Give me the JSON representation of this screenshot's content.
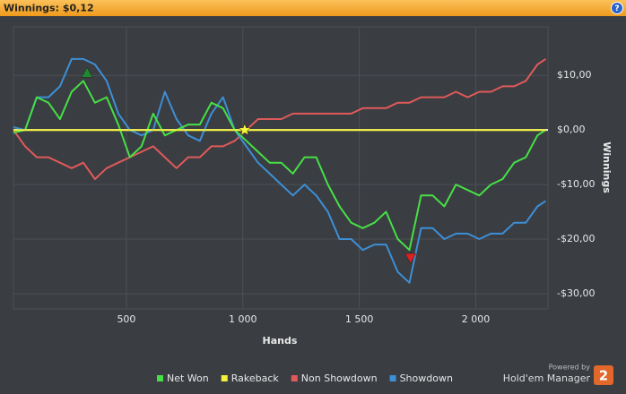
{
  "chart_data": {
    "type": "line",
    "title": "Winnings: $0,12",
    "xlabel": "Hands",
    "ylabel": "Winnings",
    "footer": {
      "powered": "Powered by",
      "brand": "Hold'em Manager",
      "version": "2"
    },
    "x": [
      15,
      65,
      115,
      165,
      215,
      265,
      315,
      365,
      415,
      465,
      515,
      565,
      615,
      665,
      715,
      765,
      815,
      865,
      915,
      965,
      1015,
      1065,
      1115,
      1165,
      1215,
      1265,
      1315,
      1365,
      1415,
      1465,
      1515,
      1565,
      1615,
      1665,
      1715,
      1765,
      1815,
      1865,
      1915,
      1965,
      2015,
      2065,
      2115,
      2165,
      2215,
      2265,
      2300
    ],
    "series": [
      {
        "name": "Net Won",
        "color": "#46e046",
        "values": [
          -0.5,
          0,
          6,
          5,
          2,
          7,
          9,
          5,
          6,
          1,
          -5,
          -3,
          3,
          -1,
          0,
          1,
          1,
          5,
          4,
          0,
          -2,
          -4,
          -6,
          -6,
          -8,
          -5,
          -5,
          -10,
          -14,
          -17,
          -18,
          -17,
          -15,
          -20,
          -22,
          -12,
          -12,
          -14,
          -10,
          -11,
          -12,
          -10,
          -9,
          -6,
          -5,
          -1,
          0
        ]
      },
      {
        "name": "Rakeback",
        "color": "#f2f23a",
        "values": [
          0,
          0,
          0,
          0,
          0,
          0,
          0,
          0,
          0,
          0,
          0,
          0,
          0,
          0,
          0,
          0,
          0,
          0,
          0,
          0,
          0,
          0,
          0,
          0,
          0,
          0,
          0,
          0,
          0,
          0,
          0,
          0,
          0,
          0,
          0,
          0,
          0,
          0,
          0,
          0,
          0,
          0,
          0,
          0,
          0,
          0,
          0
        ]
      },
      {
        "name": "Non Showdown",
        "color": "#e05a5a",
        "values": [
          0,
          -3,
          -5,
          -5,
          -6,
          -7,
          -6,
          -9,
          -7,
          -6,
          -5,
          -4,
          -3,
          -5,
          -7,
          -5,
          -5,
          -3,
          -3,
          -2,
          0,
          2,
          2,
          2,
          3,
          3,
          3,
          3,
          3,
          3,
          4,
          4,
          4,
          5,
          5,
          6,
          6,
          6,
          7,
          6,
          7,
          7,
          8,
          8,
          9,
          12,
          13
        ]
      },
      {
        "name": "Showdown",
        "color": "#3d8fd6",
        "values": [
          0.5,
          0,
          6,
          6,
          8,
          13,
          13,
          12,
          9,
          3,
          0,
          -1,
          0,
          7,
          2,
          -1,
          -2,
          3,
          6,
          0,
          -3,
          -6,
          -8,
          -10,
          -12,
          -10,
          -12,
          -15,
          -20,
          -20,
          -22,
          -21,
          -21,
          -26,
          -28,
          -18,
          -18,
          -20,
          -19,
          -19,
          -20,
          -19,
          -19,
          -17,
          -17,
          -14,
          -13
        ]
      }
    ],
    "markers": [
      {
        "x": 331,
        "value": 10.3,
        "color": "#1e8a2e",
        "shape": "triangle-up"
      },
      {
        "x": 1008,
        "value": 0,
        "color": "#f5f53a",
        "shape": "star"
      },
      {
        "x": 1720,
        "value": -23.3,
        "color": "#e02020",
        "shape": "triangle-down"
      }
    ],
    "xlim": [
      15,
      2310
    ],
    "xticks": [
      500,
      {
        "value": 1000,
        "label": "1 000"
      },
      {
        "value": 1500,
        "label": "1 500"
      },
      {
        "value": 2000,
        "label": "2 000"
      }
    ],
    "ylim": [
      -32.8,
      18.9
    ],
    "yticks": [
      {
        "value": 10,
        "label": "$10,00"
      },
      {
        "value": 0,
        "label": "$0,00"
      },
      {
        "value": -10,
        "label": "-$10,00"
      },
      {
        "value": -20,
        "label": "-$20,00"
      },
      {
        "value": -30,
        "label": "-$30,00"
      }
    ],
    "grid": true
  }
}
